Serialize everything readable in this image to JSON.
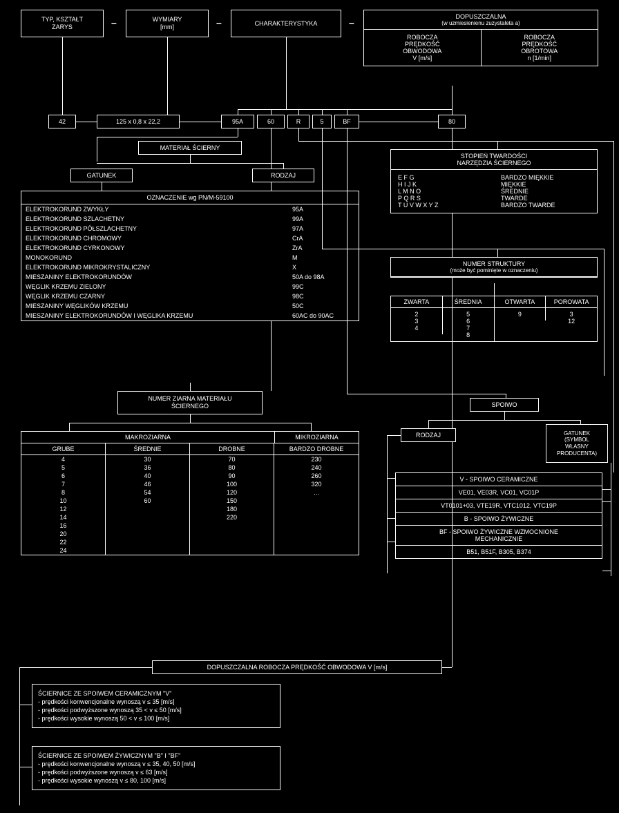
{
  "top_row": {
    "shape": {
      "l1": "TYP, KSZTAŁT",
      "l2": "ZARYS"
    },
    "dims": {
      "l1": "WYMIARY",
      "l2": "[mm]"
    },
    "charak": "CHARAKTERYSTYKA",
    "dop_title": "DOPUSZCZALNA",
    "dop_sub": "(w uzmiesienienu zuzystaleta a)",
    "dop_left": {
      "l1": "ROBOCZA",
      "l2": "PRĘDKOŚĆ",
      "l3": "OBWODOWA",
      "l4": "V [m/s]"
    },
    "dop_right": {
      "l1": "ROBOCZA",
      "l2": "PRĘDKOŚĆ",
      "l3": "OBROTOWA",
      "l4": "n [1/min]"
    }
  },
  "code_row": {
    "c1": "42",
    "c2": "125 x 0,8 x 22,2",
    "c3": "95A",
    "c4": "60",
    "c5": "R",
    "c6": "5",
    "c7": "BF",
    "c8": "80"
  },
  "sec_material": "MATERIAŁ ŚCIERNY",
  "sec_gatunek": "GATUNEK",
  "sec_rodzaj": "RODZAJ",
  "oznaczenie": {
    "title": "OZNACZENIE wg PN/M-59100",
    "rows": [
      [
        "ELEKTROKORUND ZWYKŁY",
        "95A"
      ],
      [
        "ELEKTROKORUND SZLACHETNY",
        "99A"
      ],
      [
        "ELEKTROKORUND PÓŁSZLACHETNY",
        "97A"
      ],
      [
        "ELEKTROKORUND CHROMOWY",
        "CrA"
      ],
      [
        "ELEKTROKORUND CYRKONOWY",
        "ZrA"
      ],
      [
        "MONOKORUND",
        "M"
      ],
      [
        "ELEKTROKORUND MIKROKRYSTALICZNY",
        "X"
      ],
      [
        "MIESZANINY ELEKTROKORUNDÓW",
        "50A do 98A"
      ],
      [
        "WĘGLIK KRZEMU ZIELONY",
        "99C"
      ],
      [
        "WĘGLIK KRZEMU CZARNY",
        "98C"
      ],
      [
        "MIESZANINY WĘGLIKÓW KRZEMU",
        "50C"
      ],
      [
        "MIESZANINY ELEKTROKORUNDÓW I WĘGLIKA KRZEMU",
        "60AC do 90AC"
      ]
    ]
  },
  "hardness": {
    "title": {
      "l1": "STOPIEŃ TWARDOŚCI",
      "l2": "NARZĘDZIA ŚCIERNEGO"
    },
    "rows": [
      [
        "E F G",
        "BARDZO MIĘKKIE"
      ],
      [
        "H I J K",
        "MIĘKKIE"
      ],
      [
        "L M N O",
        "ŚREDNIE"
      ],
      [
        "P Q R S",
        "TWARDE"
      ],
      [
        "T U V W X Y Z",
        "BARDZO TWARDE"
      ]
    ]
  },
  "structure": {
    "title": {
      "l1": "NUMER STRUKTURY",
      "l2": "(może być pominięte w oznaczeniu)"
    },
    "hdr": [
      "ZWARTA",
      "ŚREDNIA",
      "OTWARTA",
      "POROWATA"
    ],
    "cols": [
      [
        "2",
        "3",
        "4"
      ],
      [
        "5",
        "6",
        "7",
        "8"
      ],
      [
        "9"
      ],
      [
        "3",
        "12"
      ]
    ]
  },
  "grain_title": {
    "l1": "NUMER ZIARNA MATERIAŁU",
    "l2": "ŚCIERNEGO"
  },
  "grain": {
    "macro": "MAKROZIARNA",
    "micro": "MIKROZIARNA",
    "sub": [
      "GRUBE",
      "ŚREDNIE",
      "DROBNE",
      "BARDZO DROBNE"
    ],
    "rows": [
      [
        "4",
        "30",
        "70",
        "230"
      ],
      [
        "5",
        "36",
        "80",
        "240"
      ],
      [
        "6",
        "40",
        "90",
        "260"
      ],
      [
        "7",
        "46",
        "100",
        "320"
      ],
      [
        "8",
        "54",
        "120",
        "..."
      ],
      [
        "10",
        "60",
        "150",
        ""
      ],
      [
        "12",
        "",
        "180",
        ""
      ],
      [
        "14",
        "",
        "220",
        ""
      ],
      [
        "16",
        "",
        "",
        ""
      ],
      [
        "20",
        "",
        "",
        ""
      ],
      [
        "22",
        "",
        "",
        ""
      ],
      [
        "24",
        "",
        "",
        ""
      ]
    ]
  },
  "bond_title": "SPOIWO",
  "bond_rodzaj": "RODZAJ",
  "bond_gatunek": {
    "l1": "GATUNEK",
    "l2": "(SYMBOL",
    "l3": "WŁASNY",
    "l4": "PRODUCENTA)"
  },
  "bond_tbl": {
    "r1": "V - SPOIWO CERAMICZNE",
    "r2": "VE01, VE03R, VC01, VC01P",
    "r3": "VT0101+03, VTE19R, VTC1012, VTC19P",
    "r4": "B - SPOIWO ŻYWICZNE",
    "r5": {
      "l1": "BF - SPOIWO ŻYWICZNE WZMOCNIONE",
      "l2": "MECHANICZNIE"
    },
    "r6": "B51, B51F, B305, B374"
  },
  "speed_title": "DOPUSZCZALNA ROBOCZA PRĘDKOŚĆ OBWODOWA V [m/s]",
  "speed1": {
    "h": "ŚCIERNICE ZE SPOIWEM CERAMICZNYM \"V\"",
    "a": "- prędkości konwencjonalne wynoszą v ≤ 35 [m/s]",
    "b": "- prędkości podwyższone wynoszą 35 < v ≤ 50 [m/s]",
    "c": "- prędkości wysokie wynoszą 50 < v ≤ 100 [m/s]"
  },
  "speed2": {
    "h": "ŚCIERNICE ZE SPOIWEM ŻYWICZNYM \"B\" I \"BF\"",
    "a": "- prędkości konwencjonalne wynoszą v ≤ 35, 40, 50   [m/s]",
    "b": "- prędkości podwyższone wynoszą v ≤ 63 [m/s]",
    "c": "- prędkości wysokie wynoszą v ≤ 80, 100  [m/s]"
  },
  "colors": {
    "bg": "#000000",
    "fg": "#ffffff"
  }
}
